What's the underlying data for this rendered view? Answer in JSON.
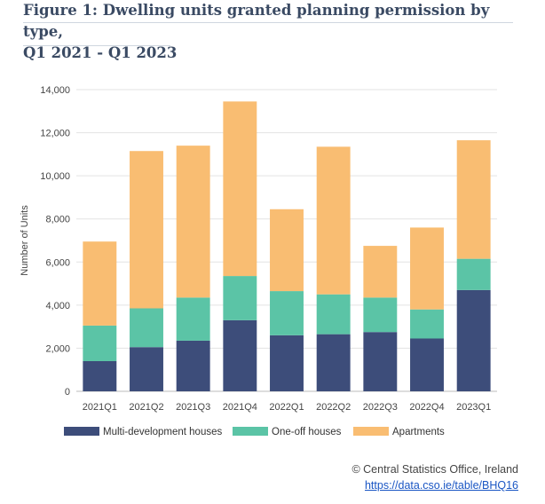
{
  "header": {
    "title_line1": "Figure 1: Dwelling units granted planning permission by type,",
    "title_line2": "Q1 2021 - Q1 2023"
  },
  "chart_data": {
    "type": "bar",
    "stacked": true,
    "categories": [
      "2021Q1",
      "2021Q2",
      "2021Q3",
      "2021Q4",
      "2022Q1",
      "2022Q2",
      "2022Q3",
      "2022Q4",
      "2023Q1"
    ],
    "series": [
      {
        "name": "Multi-development houses",
        "color": "#3d4d7a",
        "values": [
          1400,
          2050,
          2350,
          3300,
          2600,
          2650,
          2750,
          2450,
          4700
        ]
      },
      {
        "name": "One-off houses",
        "color": "#5bc4a6",
        "values": [
          1650,
          1800,
          2000,
          2050,
          2050,
          1850,
          1600,
          1350,
          1450
        ]
      },
      {
        "name": "Apartments",
        "color": "#f9bd72",
        "values": [
          3900,
          7300,
          7050,
          8100,
          3800,
          6850,
          2400,
          3800,
          5500
        ]
      }
    ],
    "title": "Figure 1: Dwelling units granted planning permission by type, Q1 2021 - Q1 2023",
    "xlabel": "",
    "ylabel": "Number of Units",
    "ylim": [
      0,
      14000
    ],
    "yticks": [
      0,
      2000,
      4000,
      6000,
      8000,
      10000,
      12000,
      14000
    ],
    "ytick_labels": [
      "0",
      "2,000",
      "4,000",
      "6,000",
      "8,000",
      "10,000",
      "12,000",
      "14,000"
    ],
    "grid": true,
    "legend_position": "bottom"
  },
  "source": {
    "name": "© Central Statistics Office, Ireland",
    "link": "https://data.cso.ie/table/BHQ16"
  }
}
